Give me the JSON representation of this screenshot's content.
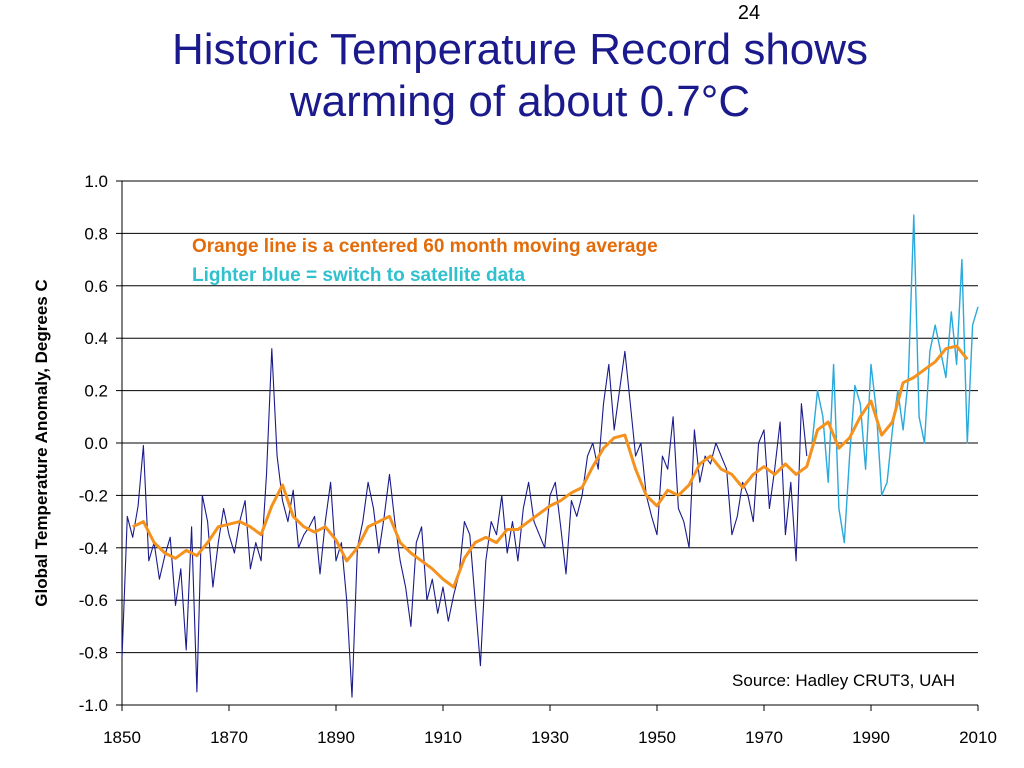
{
  "slide": {
    "number": "24",
    "title_line1": "Historic Temperature Record shows",
    "title_line2": "warming of about 0.7°C"
  },
  "colors": {
    "title": "#1a1a8c",
    "monthly_series": "#1a1a8c",
    "satellite_series": "#29a9dc",
    "moving_average": "#f5921e",
    "note_orange": "#e36c0a",
    "note_blue": "#2fc1cf"
  },
  "chart_data": {
    "type": "line",
    "title": "",
    "xlabel": "",
    "ylabel": "Global Temperature Anomaly, Degrees C",
    "xlim": [
      1850,
      2010
    ],
    "ylim": [
      -1.0,
      1.0
    ],
    "x_ticks": [
      "1850",
      "1870",
      "1890",
      "1910",
      "1930",
      "1950",
      "1970",
      "1990",
      "2010"
    ],
    "y_ticks": [
      "1.0",
      "0.8",
      "0.6",
      "0.4",
      "0.2",
      "0.0",
      "-0.2",
      "-0.4",
      "-0.6",
      "-0.8",
      "-1.0"
    ],
    "grid": "horizontal",
    "annotations": [
      "Orange line is a centered 60 month moving average",
      "Lighter blue = switch to satellite data"
    ],
    "source": "Source:  Hadley CRUT3, UAH",
    "series": [
      {
        "color": "#1a1a8c",
        "x": [
          1850,
          1851,
          1852,
          1853,
          1854,
          1855,
          1856,
          1857,
          1858,
          1859,
          1860,
          1861,
          1862,
          1863,
          1864,
          1865,
          1866,
          1867,
          1868,
          1869,
          1870,
          1871,
          1872,
          1873,
          1874,
          1875,
          1876,
          1877,
          1878,
          1879,
          1880,
          1881,
          1882,
          1883,
          1884,
          1885,
          1886,
          1887,
          1888,
          1889,
          1890,
          1891,
          1892,
          1893,
          1894,
          1895,
          1896,
          1897,
          1898,
          1899,
          1900,
          1901,
          1902,
          1903,
          1904,
          1905,
          1906,
          1907,
          1908,
          1909,
          1910,
          1911,
          1912,
          1913,
          1914,
          1915,
          1916,
          1917,
          1918,
          1919,
          1920,
          1921,
          1922,
          1923,
          1924,
          1925,
          1926,
          1927,
          1928,
          1929,
          1930,
          1931,
          1932,
          1933,
          1934,
          1935,
          1936,
          1937,
          1938,
          1939,
          1940,
          1941,
          1942,
          1943,
          1944,
          1945,
          1946,
          1947,
          1948,
          1949,
          1950,
          1951,
          1952,
          1953,
          1954,
          1955,
          1956,
          1957,
          1958,
          1959,
          1960,
          1961,
          1962,
          1963,
          1964,
          1965,
          1966,
          1967,
          1968,
          1969,
          1970,
          1971,
          1972,
          1973,
          1974,
          1975,
          1976,
          1977,
          1978
        ],
        "y": [
          -0.82,
          -0.28,
          -0.36,
          -0.24,
          -0.01,
          -0.45,
          -0.38,
          -0.52,
          -0.43,
          -0.36,
          -0.62,
          -0.48,
          -0.79,
          -0.32,
          -0.95,
          -0.2,
          -0.3,
          -0.55,
          -0.38,
          -0.25,
          -0.35,
          -0.42,
          -0.3,
          -0.22,
          -0.48,
          -0.38,
          -0.45,
          -0.12,
          0.36,
          -0.05,
          -0.22,
          -0.3,
          -0.18,
          -0.4,
          -0.35,
          -0.32,
          -0.28,
          -0.5,
          -0.3,
          -0.15,
          -0.45,
          -0.38,
          -0.6,
          -0.97,
          -0.4,
          -0.3,
          -0.15,
          -0.25,
          -0.42,
          -0.28,
          -0.12,
          -0.3,
          -0.45,
          -0.55,
          -0.7,
          -0.38,
          -0.32,
          -0.6,
          -0.52,
          -0.65,
          -0.55,
          -0.68,
          -0.58,
          -0.5,
          -0.3,
          -0.35,
          -0.6,
          -0.85,
          -0.45,
          -0.3,
          -0.35,
          -0.2,
          -0.42,
          -0.3,
          -0.45,
          -0.25,
          -0.15,
          -0.3,
          -0.35,
          -0.4,
          -0.2,
          -0.15,
          -0.32,
          -0.5,
          -0.22,
          -0.28,
          -0.2,
          -0.05,
          0.0,
          -0.1,
          0.15,
          0.3,
          0.05,
          0.2,
          0.35,
          0.15,
          -0.05,
          0.0,
          -0.2,
          -0.28,
          -0.35,
          -0.05,
          -0.1,
          0.1,
          -0.25,
          -0.3,
          -0.4,
          0.05,
          -0.15,
          -0.05,
          -0.08,
          0.0,
          -0.05,
          -0.1,
          -0.35,
          -0.28,
          -0.15,
          -0.2,
          -0.3,
          0.0,
          0.05,
          -0.25,
          -0.1,
          0.08,
          -0.35,
          -0.15,
          -0.45,
          0.15,
          -0.05
        ]
      },
      {
        "color": "#29a9dc",
        "x": [
          1979,
          1980,
          1981,
          1982,
          1983,
          1984,
          1985,
          1986,
          1987,
          1988,
          1989,
          1990,
          1991,
          1992,
          1993,
          1994,
          1995,
          1996,
          1997,
          1998,
          1999,
          2000,
          2001,
          2002,
          2003,
          2004,
          2005,
          2006,
          2007,
          2008,
          2009,
          2010
        ],
        "y": [
          0.0,
          0.2,
          0.1,
          -0.15,
          0.3,
          -0.25,
          -0.38,
          -0.05,
          0.22,
          0.15,
          -0.1,
          0.3,
          0.12,
          -0.2,
          -0.15,
          0.05,
          0.2,
          0.05,
          0.25,
          0.87,
          0.1,
          0.0,
          0.35,
          0.45,
          0.35,
          0.25,
          0.5,
          0.3,
          0.7,
          0.0,
          0.45,
          0.52
        ]
      },
      {
        "name": "Orange line is a centered 60 month moving average",
        "color": "#f5921e",
        "x": [
          1852,
          1854,
          1856,
          1858,
          1860,
          1862,
          1864,
          1866,
          1868,
          1870,
          1872,
          1874,
          1876,
          1878,
          1880,
          1882,
          1884,
          1886,
          1888,
          1890,
          1892,
          1894,
          1896,
          1898,
          1900,
          1902,
          1904,
          1906,
          1908,
          1910,
          1912,
          1914,
          1916,
          1918,
          1920,
          1922,
          1924,
          1926,
          1928,
          1930,
          1932,
          1934,
          1936,
          1938,
          1940,
          1942,
          1944,
          1946,
          1948,
          1950,
          1952,
          1954,
          1956,
          1958,
          1960,
          1962,
          1964,
          1966,
          1968,
          1970,
          1972,
          1974,
          1976,
          1978,
          1980,
          1982,
          1984,
          1986,
          1988,
          1990,
          1992,
          1994,
          1996,
          1998,
          2000,
          2002,
          2004,
          2006,
          2008
        ],
        "y": [
          -0.32,
          -0.3,
          -0.38,
          -0.42,
          -0.44,
          -0.41,
          -0.43,
          -0.38,
          -0.32,
          -0.31,
          -0.3,
          -0.32,
          -0.35,
          -0.24,
          -0.16,
          -0.28,
          -0.32,
          -0.34,
          -0.32,
          -0.37,
          -0.45,
          -0.4,
          -0.32,
          -0.3,
          -0.28,
          -0.38,
          -0.42,
          -0.45,
          -0.48,
          -0.52,
          -0.55,
          -0.44,
          -0.38,
          -0.36,
          -0.38,
          -0.33,
          -0.33,
          -0.3,
          -0.27,
          -0.24,
          -0.22,
          -0.19,
          -0.17,
          -0.09,
          -0.02,
          0.02,
          0.03,
          -0.1,
          -0.2,
          -0.24,
          -0.18,
          -0.2,
          -0.16,
          -0.08,
          -0.05,
          -0.1,
          -0.12,
          -0.17,
          -0.12,
          -0.09,
          -0.12,
          -0.08,
          -0.12,
          -0.09,
          0.05,
          0.08,
          -0.02,
          0.02,
          0.1,
          0.16,
          0.03,
          0.08,
          0.23,
          0.25,
          0.28,
          0.31,
          0.36,
          0.37,
          0.32
        ]
      }
    ]
  }
}
